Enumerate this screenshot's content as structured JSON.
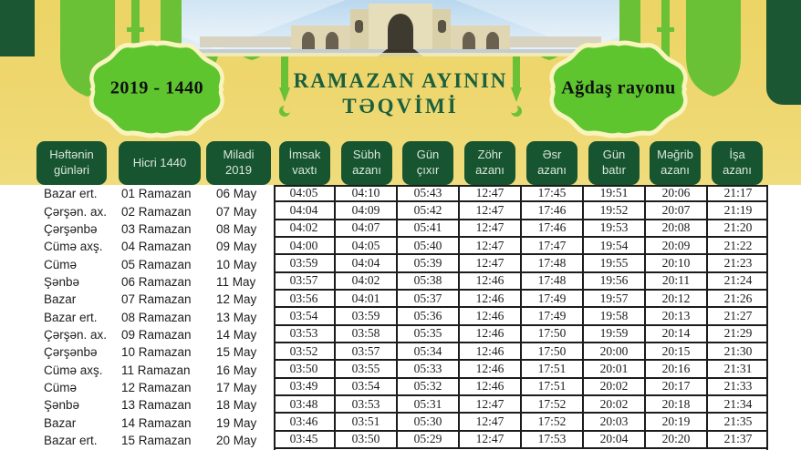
{
  "header": {
    "year_badge": "2019 - 1440",
    "region_badge": "Ağdaş rayonu",
    "title_line1": "RAMAZAN  AYININ",
    "title_line2": "TƏQVİMİ"
  },
  "colors": {
    "banner_yellow": "#eed76f",
    "silhouette_green": "#6ac136",
    "badge_green": "#5ec52f",
    "badge_outline_cream": "#f9f3bd",
    "header_pill_green": "#175430",
    "title_green": "#1a5f3e",
    "table_border": "#1c1c1c"
  },
  "table": {
    "columns": [
      "Həftənin günləri",
      "Hicri 1440",
      "Miladi 2019",
      "İmsak vaxtı",
      "Sübh azanı",
      "Gün çıxır",
      "Zöhr azanı",
      "Əsr azanı",
      "Gün batır",
      "Məğrib azanı",
      "İşa azanı"
    ],
    "rows": [
      {
        "day": "Bazar ert.",
        "hicri": "01 Ramazan",
        "miladi": "06 May",
        "times": [
          "04:05",
          "04:10",
          "05:43",
          "12:47",
          "17:45",
          "19:51",
          "20:06",
          "21:17"
        ]
      },
      {
        "day": "Çərşən. ax.",
        "hicri": "02 Ramazan",
        "miladi": "07 May",
        "times": [
          "04:04",
          "04:09",
          "05:42",
          "12:47",
          "17:46",
          "19:52",
          "20:07",
          "21:19"
        ]
      },
      {
        "day": "Çərşənbə",
        "hicri": "03 Ramazan",
        "miladi": "08 May",
        "times": [
          "04:02",
          "04:07",
          "05:41",
          "12:47",
          "17:46",
          "19:53",
          "20:08",
          "21:20"
        ]
      },
      {
        "day": "Cümə axş.",
        "hicri": "04 Ramazan",
        "miladi": "09 May",
        "times": [
          "04:00",
          "04:05",
          "05:40",
          "12:47",
          "17:47",
          "19:54",
          "20:09",
          "21:22"
        ]
      },
      {
        "day": "Cümə",
        "hicri": "05 Ramazan",
        "miladi": "10 May",
        "times": [
          "03:59",
          "04:04",
          "05:39",
          "12:47",
          "17:48",
          "19:55",
          "20:10",
          "21:23"
        ]
      },
      {
        "day": "Şənbə",
        "hicri": "06 Ramazan",
        "miladi": "11 May",
        "times": [
          "03:57",
          "04:02",
          "05:38",
          "12:46",
          "17:48",
          "19:56",
          "20:11",
          "21:24"
        ]
      },
      {
        "day": "Bazar",
        "hicri": "07 Ramazan",
        "miladi": "12 May",
        "times": [
          "03:56",
          "04:01",
          "05:37",
          "12:46",
          "17:49",
          "19:57",
          "20:12",
          "21:26"
        ]
      },
      {
        "day": "Bazar ert.",
        "hicri": "08 Ramazan",
        "miladi": "13 May",
        "times": [
          "03:54",
          "03:59",
          "05:36",
          "12:46",
          "17:49",
          "19:58",
          "20:13",
          "21:27"
        ]
      },
      {
        "day": "Çərşən. ax.",
        "hicri": "09 Ramazan",
        "miladi": "14 May",
        "times": [
          "03:53",
          "03:58",
          "05:35",
          "12:46",
          "17:50",
          "19:59",
          "20:14",
          "21:29"
        ]
      },
      {
        "day": "Çərşənbə",
        "hicri": "10 Ramazan",
        "miladi": "15 May",
        "times": [
          "03:52",
          "03:57",
          "05:34",
          "12:46",
          "17:50",
          "20:00",
          "20:15",
          "21:30"
        ]
      },
      {
        "day": "Cümə axş.",
        "hicri": "11 Ramazan",
        "miladi": "16 May",
        "times": [
          "03:50",
          "03:55",
          "05:33",
          "12:46",
          "17:51",
          "20:01",
          "20:16",
          "21:31"
        ]
      },
      {
        "day": "Cümə",
        "hicri": "12 Ramazan",
        "miladi": "17 May",
        "times": [
          "03:49",
          "03:54",
          "05:32",
          "12:46",
          "17:51",
          "20:02",
          "20:17",
          "21:33"
        ]
      },
      {
        "day": "Şənbə",
        "hicri": "13 Ramazan",
        "miladi": "18 May",
        "times": [
          "03:48",
          "03:53",
          "05:31",
          "12:47",
          "17:52",
          "20:02",
          "20:18",
          "21:34"
        ]
      },
      {
        "day": "Bazar",
        "hicri": "14 Ramazan",
        "miladi": "19 May",
        "times": [
          "03:46",
          "03:51",
          "05:30",
          "12:47",
          "17:52",
          "20:03",
          "20:19",
          "21:35"
        ]
      },
      {
        "day": "Bazar ert.",
        "hicri": "15 Ramazan",
        "miladi": "20 May",
        "times": [
          "03:45",
          "03:50",
          "05:29",
          "12:47",
          "17:53",
          "20:04",
          "20:20",
          "21:37"
        ]
      }
    ]
  }
}
